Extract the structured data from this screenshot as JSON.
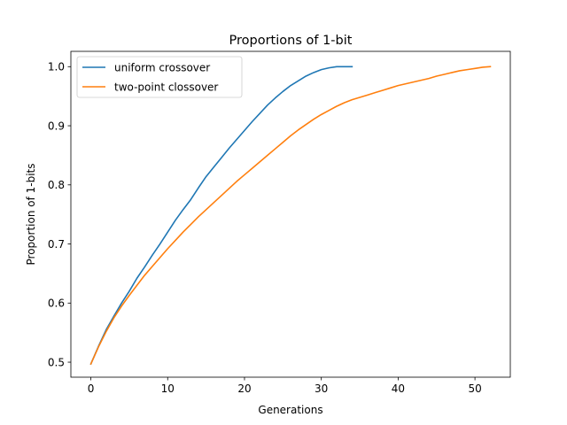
{
  "chart_data": {
    "type": "line",
    "title": "Proportions of 1-bit",
    "xlabel": "Generations",
    "ylabel": "Proportion of 1-bits",
    "xlim": [
      -2.6,
      54.6
    ],
    "ylim": [
      0.4746,
      1.0259
    ],
    "x_ticks": [
      0,
      10,
      20,
      30,
      40,
      50
    ],
    "x_tick_labels": [
      "0",
      "10",
      "20",
      "30",
      "40",
      "50"
    ],
    "y_ticks": [
      0.5,
      0.6,
      0.7,
      0.8,
      0.9,
      1.0
    ],
    "y_tick_labels": [
      "0.5",
      "0.6",
      "0.7",
      "0.8",
      "0.9",
      "1.0"
    ],
    "grid": false,
    "legend_position": "top-left",
    "series": [
      {
        "name": "uniform crossover",
        "color": "#1f77b4",
        "x": [
          0,
          1,
          2,
          3,
          4,
          5,
          6,
          7,
          8,
          9,
          10,
          11,
          12,
          13,
          14,
          15,
          16,
          17,
          18,
          19,
          20,
          21,
          22,
          23,
          24,
          25,
          26,
          27,
          28,
          29,
          30,
          31,
          32,
          33,
          34
        ],
        "y": [
          0.497,
          0.527,
          0.555,
          0.578,
          0.6,
          0.62,
          0.642,
          0.661,
          0.681,
          0.7,
          0.72,
          0.74,
          0.758,
          0.775,
          0.795,
          0.814,
          0.83,
          0.846,
          0.862,
          0.877,
          0.892,
          0.907,
          0.921,
          0.935,
          0.947,
          0.958,
          0.968,
          0.976,
          0.984,
          0.99,
          0.995,
          0.998,
          1.0,
          1.0,
          1.0
        ]
      },
      {
        "name": "two-point clossover",
        "color": "#ff7f0e",
        "x": [
          0,
          1,
          2,
          3,
          4,
          5,
          6,
          7,
          8,
          9,
          10,
          11,
          12,
          13,
          14,
          15,
          16,
          17,
          18,
          19,
          20,
          21,
          22,
          23,
          24,
          25,
          26,
          27,
          28,
          29,
          30,
          31,
          32,
          33,
          34,
          35,
          36,
          37,
          38,
          39,
          40,
          41,
          42,
          43,
          44,
          45,
          46,
          47,
          48,
          49,
          50,
          51,
          52
        ],
        "y": [
          0.497,
          0.526,
          0.552,
          0.575,
          0.595,
          0.613,
          0.63,
          0.647,
          0.662,
          0.677,
          0.692,
          0.706,
          0.72,
          0.733,
          0.746,
          0.758,
          0.77,
          0.782,
          0.794,
          0.806,
          0.817,
          0.828,
          0.839,
          0.85,
          0.861,
          0.872,
          0.883,
          0.893,
          0.902,
          0.911,
          0.919,
          0.926,
          0.933,
          0.939,
          0.944,
          0.948,
          0.952,
          0.956,
          0.96,
          0.964,
          0.968,
          0.971,
          0.974,
          0.977,
          0.98,
          0.984,
          0.987,
          0.99,
          0.993,
          0.995,
          0.997,
          0.999,
          1.0
        ]
      }
    ]
  }
}
